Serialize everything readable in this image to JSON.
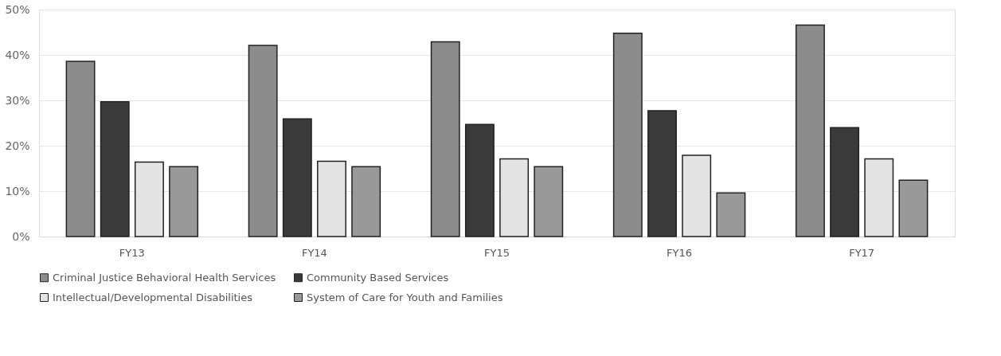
{
  "chart_data": {
    "type": "bar",
    "categories": [
      "FY13",
      "FY14",
      "FY15",
      "FY16",
      "FY17"
    ],
    "series": [
      {
        "name": "Criminal Justice Behavioral Health Services",
        "color": "#8c8c8c",
        "values": [
          38.6,
          42.1,
          42.9,
          44.8,
          46.6
        ]
      },
      {
        "name": "Community Based Services",
        "color": "#3a3a3a",
        "values": [
          29.7,
          25.9,
          24.7,
          27.7,
          24.0
        ]
      },
      {
        "name": "Intellectual/Developmental Disabilities",
        "color": "#e4e4e4",
        "values": [
          16.4,
          16.6,
          17.1,
          17.9,
          17.1
        ]
      },
      {
        "name": "System of Care for Youth and Families",
        "color": "#999999",
        "values": [
          15.4,
          15.4,
          15.4,
          9.6,
          12.4
        ]
      }
    ],
    "ylim": [
      0,
      50
    ],
    "yticks": [
      {
        "value": 0,
        "label": "0%"
      },
      {
        "value": 10,
        "label": "10%"
      },
      {
        "value": 20,
        "label": "20%"
      },
      {
        "value": 30,
        "label": "30%"
      },
      {
        "value": 40,
        "label": "40%"
      },
      {
        "value": 50,
        "label": "50%"
      }
    ],
    "grid": "y",
    "legend": "bottom"
  }
}
